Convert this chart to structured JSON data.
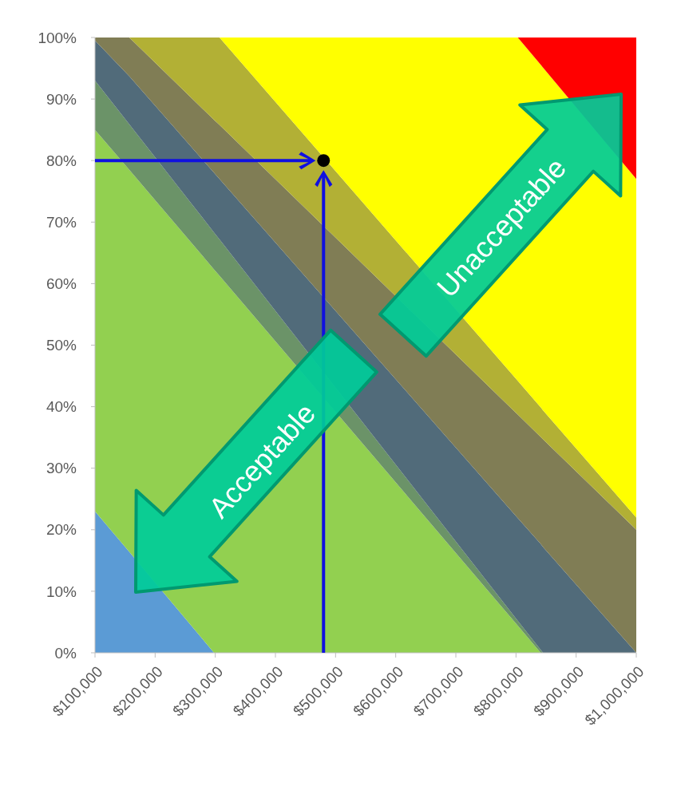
{
  "chart_data": {
    "type": "area",
    "stacked": true,
    "x": [
      100000,
      157000,
      298000,
      307000,
      803000,
      841000,
      845000,
      1000000
    ],
    "xlim": [
      100000,
      1000000
    ],
    "xticks": [
      {
        "value": 100000,
        "label": "$100,000"
      },
      {
        "value": 200000,
        "label": "$200,000"
      },
      {
        "value": 300000,
        "label": "$300,000"
      },
      {
        "value": 400000,
        "label": "$400,000"
      },
      {
        "value": 500000,
        "label": "$500,000"
      },
      {
        "value": 600000,
        "label": "$600,000"
      },
      {
        "value": 700000,
        "label": "$700,000"
      },
      {
        "value": 800000,
        "label": "$800,000"
      },
      {
        "value": 900000,
        "label": "$900,000"
      },
      {
        "value": 1000000,
        "label": "$1,000,000"
      }
    ],
    "ylim": [
      0,
      100
    ],
    "yticks": [
      {
        "value": 0,
        "label": "0%"
      },
      {
        "value": 10,
        "label": "10%"
      },
      {
        "value": 20,
        "label": "20%"
      },
      {
        "value": 30,
        "label": "30%"
      },
      {
        "value": 40,
        "label": "40%"
      },
      {
        "value": 50,
        "label": "50%"
      },
      {
        "value": 60,
        "label": "60%"
      },
      {
        "value": 70,
        "label": "70%"
      },
      {
        "value": 80,
        "label": "80%"
      },
      {
        "value": 90,
        "label": "90%"
      },
      {
        "value": 100,
        "label": "100%"
      }
    ],
    "series": [
      {
        "color": "#5b9bd5",
        "values": [
          23,
          16.4,
          0,
          0,
          0,
          0,
          0,
          0
        ]
      },
      {
        "color": "#92d050",
        "values": [
          62,
          62.1,
          62.3,
          61.3,
          4.4,
          0,
          0,
          0
        ]
      },
      {
        "color": "#6b9368",
        "values": [
          8,
          7.4,
          6,
          5.9,
          0.8,
          0.5,
          0,
          0
        ]
      },
      {
        "color": "#516b7a",
        "values": [
          6.5,
          7.8,
          9.7,
          9.8,
          16.7,
          17.2,
          17.2,
          0
        ]
      },
      {
        "color": "#807d55",
        "values": [
          0.5,
          6.3,
          8.6,
          8.8,
          16.8,
          17.4,
          17.5,
          20
        ]
      },
      {
        "color": "#b2b035",
        "values": [
          0,
          0,
          13.4,
          14.2,
          5.5,
          4.8,
          4.7,
          2
        ]
      },
      {
        "color": "#ffff00",
        "values": [
          0,
          0,
          0,
          0,
          55.8,
          55.7,
          55.7,
          55
        ]
      },
      {
        "color": "#ff0000",
        "values": [
          0,
          0,
          0,
          0,
          0,
          4.4,
          4.9,
          23
        ]
      },
      {
        "type": "scatter",
        "color": "#000000",
        "marker": "circle",
        "x": [
          480000
        ],
        "values": [
          80
        ]
      }
    ],
    "grid": false,
    "annotations": [
      "Unacceptable",
      "Acceptable"
    ]
  }
}
